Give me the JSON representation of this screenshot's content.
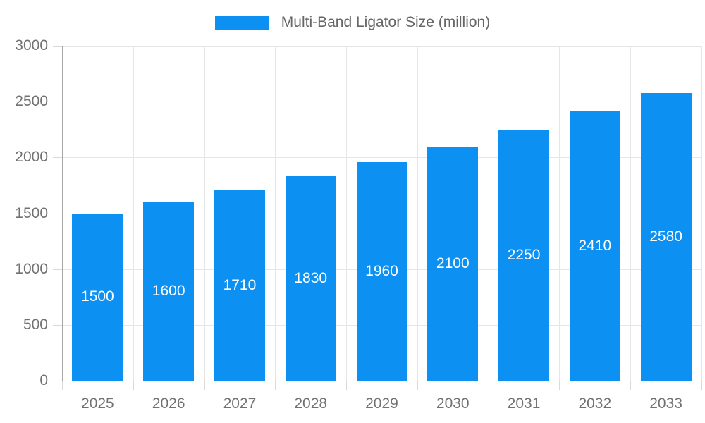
{
  "legend": {
    "label": "Multi-Band Ligator Size (million)"
  },
  "chart_data": {
    "type": "bar",
    "title": "Multi-Band Ligator Size (million)",
    "categories": [
      "2025",
      "2026",
      "2027",
      "2028",
      "2029",
      "2030",
      "2031",
      "2032",
      "2033"
    ],
    "values": [
      1500,
      1600,
      1710,
      1830,
      1960,
      2100,
      2250,
      2410,
      2580
    ],
    "xlabel": "",
    "ylabel": "",
    "ylim": [
      0,
      3000
    ],
    "ytick_step": 500,
    "ytick_labels": [
      "0",
      "500",
      "1000",
      "1500",
      "2000",
      "2500",
      "3000"
    ],
    "grid": true,
    "legend_position": "top-center",
    "bar_color": "#0c90f2",
    "value_label_color": "#ffffff",
    "axis_label_color": "#717171",
    "legend_text_color": "#666666",
    "gridline_color": "#e6e6e6",
    "axis_line_color": "#a6a6a6"
  }
}
